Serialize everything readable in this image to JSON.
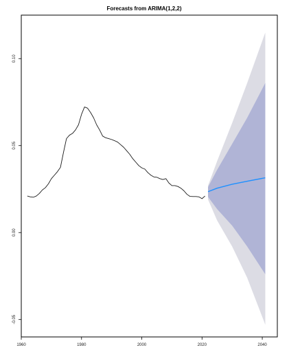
{
  "chart_data": {
    "type": "line",
    "title": "Forecasts from ARIMA(1,2,2)",
    "xlabel": "",
    "ylabel": "",
    "xlim": [
      1960,
      2045
    ],
    "ylim": [
      -0.06,
      0.125
    ],
    "x_ticks": [
      1960,
      1980,
      2000,
      2020,
      2040
    ],
    "y_ticks": [
      -0.05,
      0.0,
      0.05,
      0.1
    ],
    "x_tick_labels": [
      "1960",
      "1980",
      "2000",
      "2020",
      "2040"
    ],
    "y_tick_labels": [
      "-0.05",
      "0.00",
      "0.05",
      "0.10"
    ],
    "grid": false,
    "legend": "none",
    "colors": {
      "historical": "#1a1a1a",
      "forecast": "#1e90ff",
      "band_80": "#b0b4d6",
      "band_95": "#dcdce4",
      "axis": "#000000"
    },
    "series": [
      {
        "role": "historical",
        "x": [
          1962,
          1963,
          1964,
          1965,
          1966,
          1967,
          1968,
          1969,
          1970,
          1971,
          1972,
          1973,
          1974,
          1975,
          1976,
          1977,
          1978,
          1979,
          1980,
          1981,
          1982,
          1983,
          1984,
          1985,
          1986,
          1987,
          1988,
          1989,
          1990,
          1991,
          1992,
          1993,
          1994,
          1995,
          1996,
          1997,
          1998,
          1999,
          2000,
          2001,
          2002,
          2003,
          2004,
          2005,
          2006,
          2007,
          2008,
          2009,
          2010,
          2011,
          2012,
          2013,
          2014,
          2015,
          2016,
          2017,
          2018,
          2019,
          2020,
          2021
        ],
        "y": [
          0.021,
          0.0205,
          0.0203,
          0.021,
          0.0225,
          0.0245,
          0.0258,
          0.028,
          0.031,
          0.033,
          0.035,
          0.0375,
          0.046,
          0.054,
          0.056,
          0.057,
          0.059,
          0.062,
          0.068,
          0.0722,
          0.0715,
          0.069,
          0.066,
          0.062,
          0.059,
          0.0555,
          0.0545,
          0.054,
          0.0535,
          0.0528,
          0.052,
          0.0505,
          0.049,
          0.047,
          0.045,
          0.0425,
          0.0405,
          0.0385,
          0.0372,
          0.0365,
          0.0345,
          0.033,
          0.032,
          0.0318,
          0.031,
          0.0305,
          0.031,
          0.0285,
          0.027,
          0.027,
          0.0265,
          0.0255,
          0.024,
          0.022,
          0.0208,
          0.0207,
          0.0207,
          0.0205,
          0.0195,
          0.021
        ]
      },
      {
        "role": "forecast",
        "x": [
          2022,
          2025,
          2030,
          2035,
          2041
        ],
        "y": [
          0.0235,
          0.0255,
          0.0278,
          0.0295,
          0.0315
        ]
      }
    ],
    "intervals": [
      {
        "level": "95",
        "x": [
          2022,
          2025,
          2030,
          2035,
          2041
        ],
        "lower": [
          0.019,
          0.007,
          -0.008,
          -0.026,
          -0.053
        ],
        "upper": [
          0.027,
          0.041,
          0.063,
          0.086,
          0.115
        ]
      },
      {
        "level": "80",
        "x": [
          2022,
          2025,
          2030,
          2035,
          2041
        ],
        "lower": [
          0.0205,
          0.0135,
          0.004,
          -0.008,
          -0.024
        ],
        "upper": [
          0.0262,
          0.036,
          0.051,
          0.066,
          0.086
        ]
      }
    ]
  }
}
